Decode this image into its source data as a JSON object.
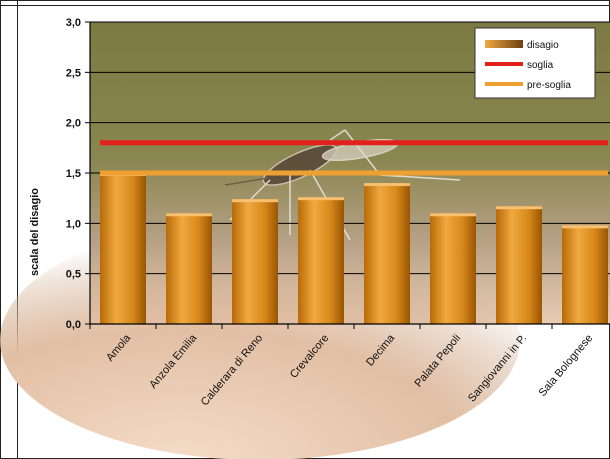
{
  "chart_data": {
    "type": "bar",
    "ylabel": "scala del disagio",
    "ylim": [
      0,
      3.0
    ],
    "yticks": [
      "0,0",
      "0,5",
      "1,0",
      "1,5",
      "2,0",
      "2,5",
      "3,0"
    ],
    "categories": [
      "Amola",
      "Anzola Emilia",
      "Calderara di Reno",
      "Crevalcore",
      "Decima",
      "Palata Pepoli",
      "Sangiovanni in P.",
      "Sala Bolognese"
    ],
    "series": [
      {
        "name": "disagio",
        "values": [
          1.5,
          1.1,
          1.24,
          1.26,
          1.4,
          1.1,
          1.17,
          0.98
        ]
      }
    ],
    "lines": [
      {
        "name": "soglia",
        "value": 1.8,
        "color": "#e3211c"
      },
      {
        "name": "pre-soglia",
        "value": 1.5,
        "color": "#f0a030"
      }
    ],
    "legend": {
      "position": "top-right",
      "entries": [
        "disagio",
        "soglia",
        "pre-soglia"
      ]
    },
    "grid": true,
    "bar_color": "#d58a14"
  }
}
